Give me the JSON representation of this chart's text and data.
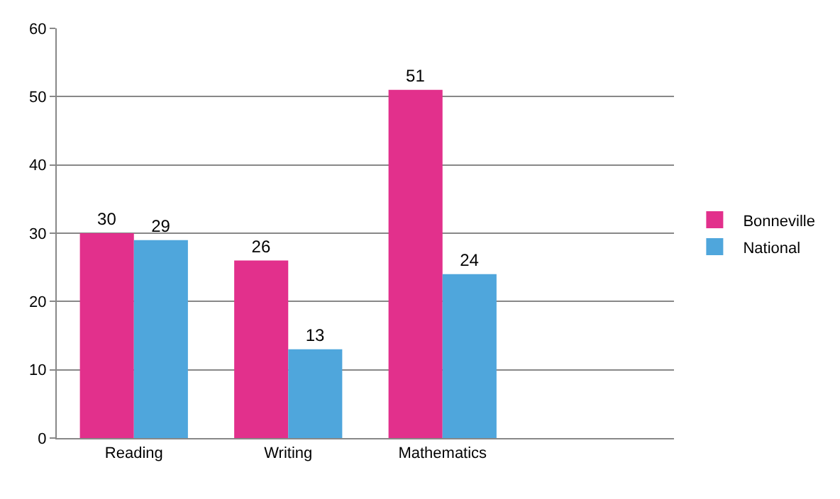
{
  "chart_data": {
    "type": "bar",
    "categories": [
      "Reading",
      "Writing",
      "Mathematics",
      null
    ],
    "series": [
      {
        "name": "Bonneville",
        "color": "#e2308c",
        "values": [
          30,
          26,
          51,
          null
        ]
      },
      {
        "name": "National",
        "color": "#4fa6dc",
        "values": [
          29,
          13,
          24,
          null
        ]
      }
    ],
    "ylim": [
      0,
      60
    ],
    "yticks": [
      0,
      10,
      20,
      30,
      40,
      50,
      60
    ],
    "grid": "y",
    "legend": "right",
    "data_labels": true
  }
}
